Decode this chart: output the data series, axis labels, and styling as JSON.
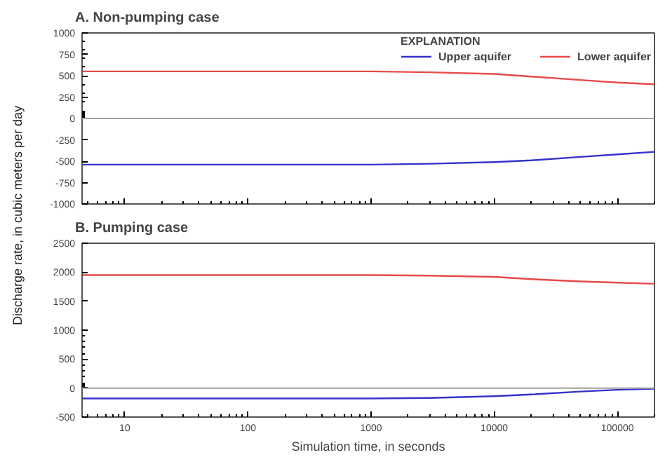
{
  "chart_data": [
    {
      "type": "line",
      "title": "A. Non-pumping case",
      "ylabel": "Discharge rate, in cubic meters per day",
      "log": "x",
      "xlim": [
        4.5,
        200000
      ],
      "ylim": [
        -1000,
        1000
      ],
      "yticks": [
        -1000,
        -750,
        -500,
        -250,
        0,
        250,
        500,
        750,
        1000
      ],
      "xticks": [
        {
          "value": 10,
          "label": null
        },
        {
          "value": 100,
          "label": null
        },
        {
          "value": 1000,
          "label": null
        },
        {
          "value": 10000,
          "label": null
        },
        {
          "value": 100000,
          "label": null
        }
      ],
      "tick_labels": "y",
      "grid": false,
      "legend": "top right",
      "legend_title": "EXPLANATION",
      "x": [
        4.5,
        10,
        100,
        1000,
        3000,
        10000,
        20000,
        50000,
        100000,
        200000
      ],
      "ref_lines": [
        {
          "axis": "y",
          "value": 0,
          "color": "#a0a0a0"
        }
      ],
      "series": [
        {
          "name": "Upper aquifer",
          "color": "#3333cc",
          "values": [
            -540,
            -540,
            -540,
            -540,
            -530,
            -510,
            -490,
            -450,
            -420,
            -390
          ]
        },
        {
          "name": "Lower aquifer",
          "color": "#e84a4a",
          "values": [
            550,
            550,
            550,
            550,
            540,
            520,
            490,
            450,
            420,
            400
          ]
        }
      ]
    },
    {
      "type": "line",
      "title": "B. Pumping case",
      "xlabel": "Simulation time, in seconds",
      "log": "x",
      "xlim": [
        4.5,
        200000
      ],
      "ylim": [
        -500,
        2500
      ],
      "yticks": [
        -500,
        0,
        500,
        1000,
        1500,
        2000,
        2500
      ],
      "xticks": [
        10,
        100,
        1000,
        10000,
        100000
      ],
      "grid": false,
      "legend": false,
      "x": [
        4.5,
        10,
        100,
        1000,
        3000,
        10000,
        20000,
        50000,
        100000,
        200000
      ],
      "ref_lines": [
        {
          "axis": "y",
          "value": 0,
          "color": "#a0a0a0"
        }
      ],
      "series": [
        {
          "color": "#3333cc",
          "values": [
            -180,
            -180,
            -180,
            -180,
            -170,
            -140,
            -110,
            -60,
            -30,
            -10
          ]
        },
        {
          "color": "#e84a4a",
          "values": [
            1950,
            1950,
            1950,
            1950,
            1940,
            1920,
            1880,
            1840,
            1820,
            1800
          ]
        }
      ]
    }
  ]
}
